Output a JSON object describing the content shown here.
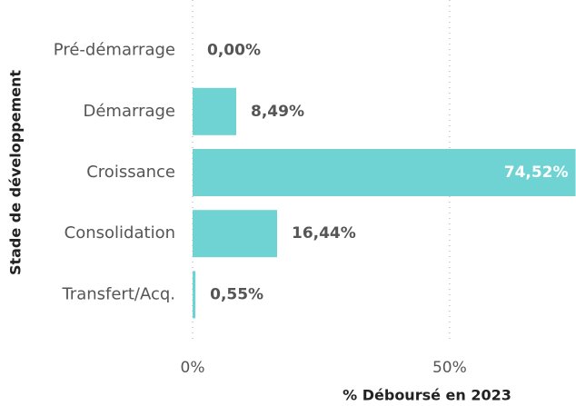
{
  "chart_data": {
    "type": "bar",
    "orientation": "horizontal",
    "categories": [
      "Pré-démarrage",
      "Démarrage",
      "Croissance",
      "Consolidation",
      "Transfert/Acq."
    ],
    "values": [
      0,
      8.49,
      74.52,
      16.44,
      0.55
    ],
    "value_labels": [
      "0,00%",
      "8,49%",
      "74,52%",
      "16,44%",
      "0,55%"
    ],
    "color": "#6fd3d3",
    "xlim": [
      0,
      74.6
    ],
    "xticks": [
      {
        "value": 0,
        "label": "0%"
      },
      {
        "value": 50,
        "label": "50%"
      }
    ],
    "xlabel": "% Déboursé en 2023",
    "ylabel": "Stade de développement",
    "grid": true
  }
}
